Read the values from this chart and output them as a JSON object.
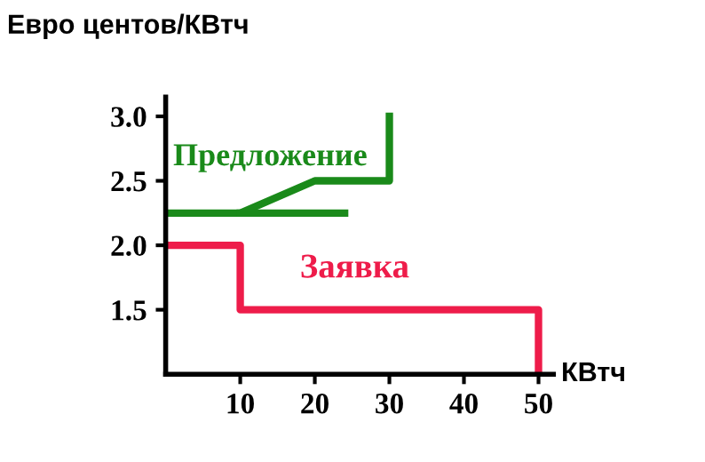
{
  "chart_data": {
    "type": "line",
    "ylabel": "Евро центов/КВтч",
    "xlabel": "КВтч",
    "xlim": [
      0,
      52
    ],
    "ylim": [
      1.0,
      3.15
    ],
    "xticks": [
      10,
      20,
      30,
      40,
      50
    ],
    "yticks": [
      1.5,
      {
        "value": 2,
        "label": "2.0"
      },
      2.5,
      {
        "value": 3,
        "label": "3.0"
      }
    ],
    "grid": false,
    "legend": false,
    "marker": "none",
    "line_style": "solid",
    "series": [
      {
        "name": "Предложение",
        "color": "#1a8a1a",
        "x": [
          0,
          10,
          20,
          30,
          30
        ],
        "values": [
          2.25,
          2.25,
          2.5,
          2.5,
          3.0
        ]
      },
      {
        "color": "#1a8a1a",
        "x": [
          10,
          24
        ],
        "values": [
          2.25,
          2.25
        ]
      },
      {
        "name": "Заявка",
        "color": "#ee1c4a",
        "x": [
          0,
          10,
          10,
          50,
          50
        ],
        "values": [
          2.0,
          2.0,
          1.5,
          1.5,
          1.0
        ]
      }
    ]
  }
}
